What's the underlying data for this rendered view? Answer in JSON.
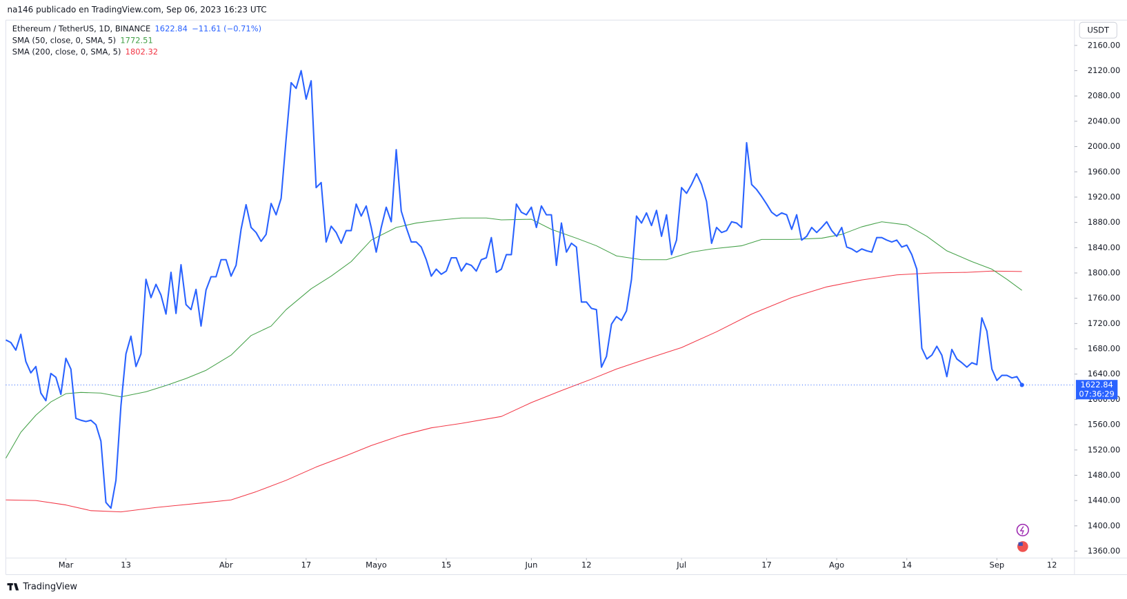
{
  "header": {
    "attribution": "na146 publicado en TradingView.com, Sep 06, 2023 16:23 UTC",
    "currency_button": "USDT",
    "countdown": "07:36:29",
    "brand": "TradingView"
  },
  "chart_data": {
    "type": "line",
    "ylim": [
      1349,
      2200
    ],
    "yticks": [
      {
        "value": 2160,
        "label": "2160.00"
      },
      {
        "value": 2120,
        "label": "2120.00"
      },
      {
        "value": 2080,
        "label": "2080.00"
      },
      {
        "value": 2040,
        "label": "2040.00"
      },
      {
        "value": 2000,
        "label": "2000.00"
      },
      {
        "value": 1960,
        "label": "1960.00"
      },
      {
        "value": 1920,
        "label": "1920.00"
      },
      {
        "value": 1880,
        "label": "1880.00"
      },
      {
        "value": 1840,
        "label": "1840.00"
      },
      {
        "value": 1800,
        "label": "1800.00"
      },
      {
        "value": 1760,
        "label": "1760.00"
      },
      {
        "value": 1720,
        "label": "1720.00"
      },
      {
        "value": 1680,
        "label": "1680.00"
      },
      {
        "value": 1640,
        "label": "1640.00"
      },
      {
        "value": 1600,
        "label": "1600.00"
      },
      {
        "value": 1560,
        "label": "1560.00"
      },
      {
        "value": 1520,
        "label": "1520.00"
      },
      {
        "value": 1480,
        "label": "1480.00"
      },
      {
        "value": 1440,
        "label": "1440.00"
      },
      {
        "value": 1400,
        "label": "1400.00"
      },
      {
        "value": 1360,
        "label": "1360.00"
      }
    ],
    "xlim": [
      0,
      213.5
    ],
    "xticks": [
      {
        "value": 12,
        "label": "Mar"
      },
      {
        "value": 24,
        "label": "13"
      },
      {
        "value": 44,
        "label": "Abr"
      },
      {
        "value": 60,
        "label": "17"
      },
      {
        "value": 74,
        "label": "Mayo"
      },
      {
        "value": 88,
        "label": "15"
      },
      {
        "value": 105,
        "label": "Jun"
      },
      {
        "value": 116,
        "label": "12"
      },
      {
        "value": 135,
        "label": "Jul"
      },
      {
        "value": 152,
        "label": "17"
      },
      {
        "value": 166,
        "label": "Ago"
      },
      {
        "value": 180,
        "label": "14"
      },
      {
        "value": 198,
        "label": "Sep"
      },
      {
        "value": 209,
        "label": "12"
      }
    ],
    "series": [
      {
        "name": "Ethereum / TetherUS, 1D, BINANCE",
        "color": "#2962ff",
        "change": "−11.61 (−0.71%)",
        "values": [
          1694,
          1690,
          1678,
          1703,
          1660,
          1642,
          1652,
          1610,
          1598,
          1641,
          1635,
          1608,
          1665,
          1648,
          1570,
          1567,
          1565,
          1567,
          1560,
          1534,
          1437,
          1428,
          1472,
          1590,
          1672,
          1700,
          1652,
          1672,
          1790,
          1761,
          1782,
          1765,
          1735,
          1801,
          1736,
          1813,
          1750,
          1742,
          1774,
          1716,
          1773,
          1794,
          1794,
          1821,
          1821,
          1795,
          1812,
          1869,
          1908,
          1872,
          1864,
          1850,
          1861,
          1910,
          1892,
          1918,
          2012,
          2101,
          2092,
          2120,
          2075,
          2104,
          1935,
          1943,
          1849,
          1874,
          1864,
          1847,
          1867,
          1867,
          1909,
          1890,
          1906,
          1872,
          1833,
          1872,
          1904,
          1881,
          1995,
          1898,
          1872,
          1849,
          1849,
          1841,
          1821,
          1795,
          1806,
          1798,
          1803,
          1824,
          1824,
          1803,
          1815,
          1812,
          1803,
          1821,
          1824,
          1856,
          1801,
          1806,
          1829,
          1829,
          1909,
          1896,
          1892,
          1904,
          1872,
          1906,
          1892,
          1892,
          1812,
          1879,
          1833,
          1847,
          1841,
          1754,
          1754,
          1744,
          1742,
          1651,
          1668,
          1719,
          1731,
          1725,
          1740,
          1790,
          1890,
          1879,
          1895,
          1875,
          1899,
          1858,
          1892,
          1829,
          1852,
          1935,
          1926,
          1940,
          1957,
          1940,
          1913,
          1847,
          1872,
          1864,
          1867,
          1881,
          1879,
          1872,
          2006,
          1940,
          1932,
          1921,
          1909,
          1896,
          1890,
          1895,
          1892,
          1869,
          1892,
          1852,
          1858,
          1872,
          1864,
          1872,
          1881,
          1867,
          1858,
          1872,
          1841,
          1838,
          1833,
          1838,
          1835,
          1833,
          1856,
          1856,
          1852,
          1849,
          1852,
          1841,
          1844,
          1829,
          1806,
          1681,
          1664,
          1670,
          1684,
          1670,
          1636,
          1679,
          1664,
          1658,
          1651,
          1658,
          1655,
          1729,
          1708,
          1648,
          1630,
          1638,
          1638,
          1634,
          1636,
          1622.84
        ]
      },
      {
        "name": "SMA (50, close, 0, SMA, 5)",
        "color": "#43a047",
        "x": [
          0,
          3,
          6,
          9,
          12,
          15,
          19,
          23,
          28,
          32,
          36,
          40,
          45,
          49,
          53,
          56,
          61,
          65,
          69,
          73,
          78,
          82,
          86,
          91,
          96,
          99,
          105,
          109,
          114,
          118,
          122,
          127,
          132,
          137,
          141,
          147,
          151,
          157,
          163,
          167,
          171,
          175,
          180,
          184,
          188,
          193,
          197,
          200,
          203
        ],
        "values": [
          1507,
          1548,
          1575,
          1596,
          1609,
          1611,
          1610,
          1604,
          1612,
          1622,
          1633,
          1646,
          1670,
          1701,
          1716,
          1742,
          1775,
          1795,
          1818,
          1852,
          1872,
          1879,
          1883,
          1887,
          1887,
          1884,
          1885,
          1869,
          1855,
          1843,
          1827,
          1821,
          1821,
          1833,
          1838,
          1843,
          1853,
          1853,
          1855,
          1861,
          1873,
          1881,
          1876,
          1858,
          1835,
          1818,
          1806,
          1790,
          1772.51
        ]
      },
      {
        "name": "SMA (200, close, 0, SMA, 5)",
        "color": "#f23645",
        "x": [
          0,
          6,
          12,
          17,
          23,
          30,
          39,
          45,
          50,
          56,
          62,
          68,
          73,
          79,
          85,
          91,
          99,
          105,
          111,
          117,
          122,
          128,
          135,
          142,
          149,
          157,
          164,
          171,
          178,
          185,
          192,
          197,
          203
        ],
        "values": [
          1441,
          1440,
          1433,
          1424,
          1422,
          1429,
          1436,
          1441,
          1454,
          1472,
          1493,
          1511,
          1527,
          1543,
          1555,
          1562,
          1573,
          1595,
          1614,
          1632,
          1648,
          1664,
          1682,
          1707,
          1735,
          1761,
          1778,
          1789,
          1797,
          1800,
          1801,
          1803,
          1802.32
        ]
      }
    ]
  }
}
